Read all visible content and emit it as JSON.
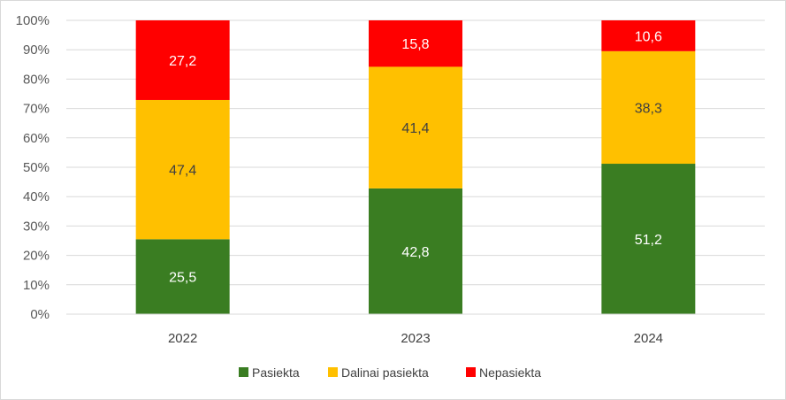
{
  "chart_data": {
    "type": "bar",
    "stacked": true,
    "categories": [
      "2022",
      "2023",
      "2024"
    ],
    "series": [
      {
        "name": "Pasiekta",
        "values": [
          25.5,
          42.8,
          51.2
        ],
        "labels": [
          "25,5",
          "42,8",
          "51,2"
        ],
        "color": "#3a7d22",
        "label_color": "#ffffff"
      },
      {
        "name": "Dalinai pasiekta",
        "values": [
          47.4,
          41.4,
          38.3
        ],
        "labels": [
          "47,4",
          "41,4",
          "38,3"
        ],
        "color": "#ffc000",
        "label_color": "#404040"
      },
      {
        "name": "Nepasiekta",
        "values": [
          27.2,
          15.8,
          10.6
        ],
        "labels": [
          "27,2",
          "15,8",
          "10,6"
        ],
        "color": "#ff0000",
        "label_color": "#ffffff"
      }
    ],
    "yticks": [
      "0%",
      "10%",
      "20%",
      "30%",
      "40%",
      "50%",
      "60%",
      "70%",
      "80%",
      "90%",
      "100%"
    ],
    "ylim": [
      0,
      100
    ],
    "grid": true,
    "legend_position": "bottom"
  }
}
